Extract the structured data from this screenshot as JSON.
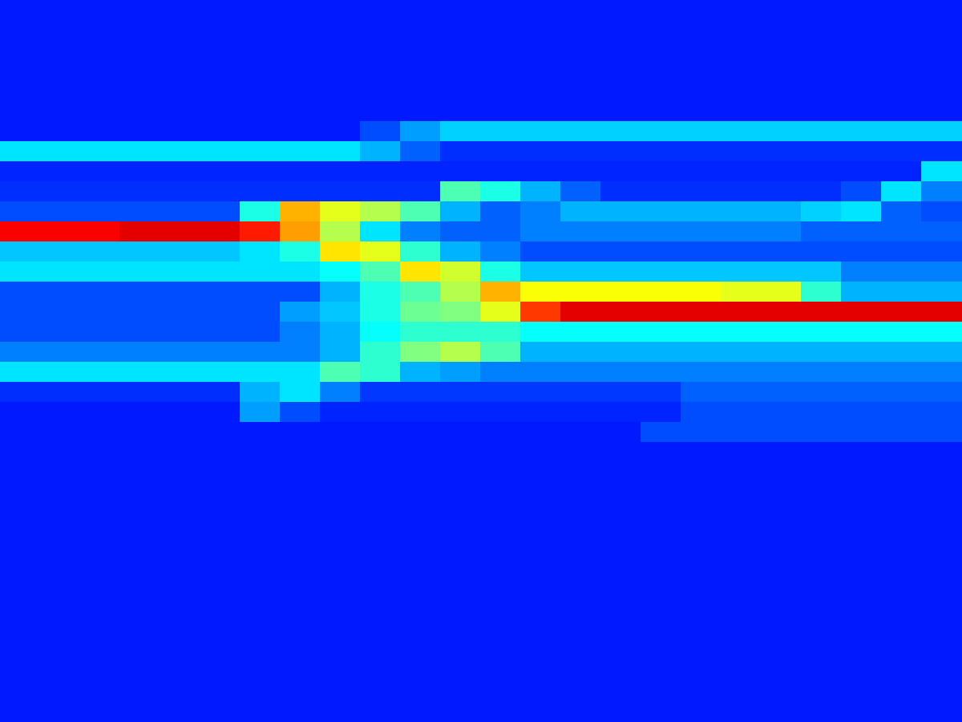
{
  "chart_data": {
    "type": "heatmap",
    "tick_labels": false,
    "grid": false,
    "zlim": [
      0,
      1
    ],
    "cells": [
      [
        0.15,
        0.15,
        0.15,
        0.15,
        0.15,
        0.15,
        0.15,
        0.15,
        0.15,
        0.15,
        0.15,
        0.15,
        0.15,
        0.15,
        0.15,
        0.15,
        0.15,
        0.15,
        0.15,
        0.15,
        0.15,
        0.15,
        0.15,
        0.15
      ],
      [
        0.15,
        0.15,
        0.15,
        0.15,
        0.15,
        0.15,
        0.15,
        0.15,
        0.15,
        0.15,
        0.15,
        0.15,
        0.15,
        0.15,
        0.15,
        0.15,
        0.15,
        0.15,
        0.15,
        0.15,
        0.15,
        0.15,
        0.15,
        0.15
      ],
      [
        0.15,
        0.15,
        0.15,
        0.15,
        0.15,
        0.15,
        0.15,
        0.15,
        0.15,
        0.15,
        0.15,
        0.15,
        0.15,
        0.15,
        0.15,
        0.15,
        0.15,
        0.15,
        0.15,
        0.15,
        0.15,
        0.15,
        0.15,
        0.15
      ],
      [
        0.15,
        0.15,
        0.15,
        0.15,
        0.15,
        0.15,
        0.15,
        0.15,
        0.15,
        0.15,
        0.15,
        0.15,
        0.15,
        0.15,
        0.15,
        0.15,
        0.15,
        0.15,
        0.15,
        0.15,
        0.15,
        0.15,
        0.15,
        0.15
      ],
      [
        0.15,
        0.15,
        0.15,
        0.15,
        0.15,
        0.15,
        0.15,
        0.15,
        0.15,
        0.15,
        0.15,
        0.15,
        0.15,
        0.15,
        0.15,
        0.15,
        0.15,
        0.15,
        0.15,
        0.15,
        0.15,
        0.15,
        0.15,
        0.15
      ],
      [
        0.15,
        0.15,
        0.15,
        0.15,
        0.15,
        0.15,
        0.15,
        0.15,
        0.15,
        0.15,
        0.15,
        0.15,
        0.15,
        0.15,
        0.15,
        0.15,
        0.15,
        0.15,
        0.15,
        0.15,
        0.15,
        0.15,
        0.15,
        0.15
      ],
      [
        0.15,
        0.15,
        0.15,
        0.15,
        0.15,
        0.15,
        0.15,
        0.15,
        0.15,
        0.2,
        0.28,
        0.33,
        0.33,
        0.33,
        0.33,
        0.33,
        0.33,
        0.33,
        0.33,
        0.33,
        0.33,
        0.33,
        0.33,
        0.33
      ],
      [
        0.35,
        0.35,
        0.35,
        0.35,
        0.35,
        0.35,
        0.35,
        0.35,
        0.35,
        0.3,
        0.22,
        0.17,
        0.17,
        0.17,
        0.17,
        0.17,
        0.17,
        0.17,
        0.17,
        0.17,
        0.17,
        0.17,
        0.17,
        0.17
      ],
      [
        0.16,
        0.16,
        0.16,
        0.16,
        0.16,
        0.16,
        0.16,
        0.16,
        0.16,
        0.16,
        0.16,
        0.16,
        0.16,
        0.16,
        0.16,
        0.16,
        0.16,
        0.16,
        0.16,
        0.16,
        0.16,
        0.16,
        0.16,
        0.35
      ],
      [
        0.17,
        0.17,
        0.17,
        0.17,
        0.17,
        0.17,
        0.17,
        0.17,
        0.17,
        0.17,
        0.17,
        0.45,
        0.4,
        0.3,
        0.22,
        0.17,
        0.17,
        0.17,
        0.17,
        0.17,
        0.17,
        0.2,
        0.35,
        0.25
      ],
      [
        0.2,
        0.2,
        0.2,
        0.2,
        0.2,
        0.2,
        0.4,
        0.7,
        0.6,
        0.55,
        0.45,
        0.3,
        0.22,
        0.25,
        0.3,
        0.3,
        0.3,
        0.3,
        0.3,
        0.3,
        0.33,
        0.35,
        0.22,
        0.2
      ],
      [
        0.88,
        0.88,
        0.88,
        0.9,
        0.9,
        0.9,
        0.85,
        0.72,
        0.55,
        0.35,
        0.25,
        0.22,
        0.22,
        0.25,
        0.25,
        0.25,
        0.25,
        0.25,
        0.25,
        0.25,
        0.22,
        0.22,
        0.22,
        0.22
      ],
      [
        0.32,
        0.32,
        0.32,
        0.32,
        0.32,
        0.32,
        0.35,
        0.4,
        0.65,
        0.6,
        0.42,
        0.3,
        0.25,
        0.2,
        0.2,
        0.2,
        0.2,
        0.2,
        0.2,
        0.2,
        0.2,
        0.2,
        0.2,
        0.2
      ],
      [
        0.35,
        0.35,
        0.35,
        0.35,
        0.35,
        0.35,
        0.35,
        0.35,
        0.38,
        0.45,
        0.65,
        0.58,
        0.4,
        0.32,
        0.32,
        0.32,
        0.32,
        0.32,
        0.32,
        0.32,
        0.32,
        0.25,
        0.25,
        0.25
      ],
      [
        0.2,
        0.2,
        0.2,
        0.2,
        0.2,
        0.2,
        0.2,
        0.2,
        0.3,
        0.4,
        0.45,
        0.55,
        0.7,
        0.62,
        0.62,
        0.62,
        0.62,
        0.62,
        0.6,
        0.6,
        0.42,
        0.3,
        0.3,
        0.3
      ],
      [
        0.2,
        0.2,
        0.2,
        0.2,
        0.2,
        0.2,
        0.2,
        0.28,
        0.32,
        0.4,
        0.48,
        0.5,
        0.6,
        0.82,
        0.9,
        0.9,
        0.9,
        0.9,
        0.9,
        0.9,
        0.9,
        0.9,
        0.9,
        0.9
      ],
      [
        0.2,
        0.2,
        0.2,
        0.2,
        0.2,
        0.2,
        0.2,
        0.25,
        0.3,
        0.38,
        0.42,
        0.42,
        0.42,
        0.38,
        0.38,
        0.38,
        0.38,
        0.38,
        0.38,
        0.38,
        0.38,
        0.38,
        0.38,
        0.38
      ],
      [
        0.25,
        0.25,
        0.25,
        0.25,
        0.25,
        0.25,
        0.25,
        0.25,
        0.3,
        0.42,
        0.5,
        0.55,
        0.45,
        0.3,
        0.3,
        0.3,
        0.3,
        0.3,
        0.3,
        0.3,
        0.3,
        0.3,
        0.3,
        0.3
      ],
      [
        0.35,
        0.35,
        0.35,
        0.35,
        0.35,
        0.35,
        0.35,
        0.35,
        0.45,
        0.42,
        0.3,
        0.28,
        0.25,
        0.25,
        0.25,
        0.25,
        0.25,
        0.25,
        0.25,
        0.25,
        0.25,
        0.25,
        0.25,
        0.25
      ],
      [
        0.17,
        0.17,
        0.17,
        0.17,
        0.17,
        0.17,
        0.3,
        0.35,
        0.25,
        0.18,
        0.18,
        0.18,
        0.18,
        0.18,
        0.18,
        0.18,
        0.18,
        0.22,
        0.22,
        0.22,
        0.22,
        0.22,
        0.22,
        0.22
      ],
      [
        0.15,
        0.15,
        0.15,
        0.15,
        0.15,
        0.15,
        0.28,
        0.2,
        0.16,
        0.16,
        0.16,
        0.16,
        0.16,
        0.16,
        0.16,
        0.16,
        0.16,
        0.2,
        0.2,
        0.2,
        0.2,
        0.2,
        0.2,
        0.2
      ],
      [
        0.15,
        0.15,
        0.15,
        0.15,
        0.15,
        0.15,
        0.15,
        0.15,
        0.15,
        0.15,
        0.15,
        0.15,
        0.15,
        0.15,
        0.15,
        0.15,
        0.2,
        0.2,
        0.2,
        0.2,
        0.2,
        0.2,
        0.2,
        0.2
      ],
      [
        0.15,
        0.15,
        0.15,
        0.15,
        0.15,
        0.15,
        0.15,
        0.15,
        0.15,
        0.15,
        0.15,
        0.15,
        0.15,
        0.15,
        0.15,
        0.15,
        0.15,
        0.15,
        0.15,
        0.15,
        0.15,
        0.15,
        0.15,
        0.15
      ],
      [
        0.15,
        0.15,
        0.15,
        0.15,
        0.15,
        0.15,
        0.15,
        0.15,
        0.15,
        0.15,
        0.15,
        0.15,
        0.15,
        0.15,
        0.15,
        0.15,
        0.15,
        0.15,
        0.15,
        0.15,
        0.15,
        0.15,
        0.15,
        0.15
      ],
      [
        0.15,
        0.15,
        0.15,
        0.15,
        0.15,
        0.15,
        0.15,
        0.15,
        0.15,
        0.15,
        0.15,
        0.15,
        0.15,
        0.15,
        0.15,
        0.15,
        0.15,
        0.15,
        0.15,
        0.15,
        0.15,
        0.15,
        0.15,
        0.15
      ],
      [
        0.15,
        0.15,
        0.15,
        0.15,
        0.15,
        0.15,
        0.15,
        0.15,
        0.15,
        0.15,
        0.15,
        0.15,
        0.15,
        0.15,
        0.15,
        0.15,
        0.15,
        0.15,
        0.15,
        0.15,
        0.15,
        0.15,
        0.15,
        0.15
      ],
      [
        0.15,
        0.15,
        0.15,
        0.15,
        0.15,
        0.15,
        0.15,
        0.15,
        0.15,
        0.15,
        0.15,
        0.15,
        0.15,
        0.15,
        0.15,
        0.15,
        0.15,
        0.15,
        0.15,
        0.15,
        0.15,
        0.15,
        0.15,
        0.15
      ],
      [
        0.15,
        0.15,
        0.15,
        0.15,
        0.15,
        0.15,
        0.15,
        0.15,
        0.15,
        0.15,
        0.15,
        0.15,
        0.15,
        0.15,
        0.15,
        0.15,
        0.15,
        0.15,
        0.15,
        0.15,
        0.15,
        0.15,
        0.15,
        0.15
      ],
      [
        0.15,
        0.15,
        0.15,
        0.15,
        0.15,
        0.15,
        0.15,
        0.15,
        0.15,
        0.15,
        0.15,
        0.15,
        0.15,
        0.15,
        0.15,
        0.15,
        0.15,
        0.15,
        0.15,
        0.15,
        0.15,
        0.15,
        0.15,
        0.15
      ],
      [
        0.15,
        0.15,
        0.15,
        0.15,
        0.15,
        0.15,
        0.15,
        0.15,
        0.15,
        0.15,
        0.15,
        0.15,
        0.15,
        0.15,
        0.15,
        0.15,
        0.15,
        0.15,
        0.15,
        0.15,
        0.15,
        0.15,
        0.15,
        0.15
      ],
      [
        0.15,
        0.15,
        0.15,
        0.15,
        0.15,
        0.15,
        0.15,
        0.15,
        0.15,
        0.15,
        0.15,
        0.15,
        0.15,
        0.15,
        0.15,
        0.15,
        0.15,
        0.15,
        0.15,
        0.15,
        0.15,
        0.15,
        0.15,
        0.15
      ],
      [
        0.15,
        0.15,
        0.15,
        0.15,
        0.15,
        0.15,
        0.15,
        0.15,
        0.15,
        0.15,
        0.15,
        0.15,
        0.15,
        0.15,
        0.15,
        0.15,
        0.15,
        0.15,
        0.15,
        0.15,
        0.15,
        0.15,
        0.15,
        0.15
      ],
      [
        0.15,
        0.15,
        0.15,
        0.15,
        0.15,
        0.15,
        0.15,
        0.15,
        0.15,
        0.15,
        0.15,
        0.15,
        0.15,
        0.15,
        0.15,
        0.15,
        0.15,
        0.15,
        0.15,
        0.15,
        0.15,
        0.15,
        0.15,
        0.15
      ],
      [
        0.15,
        0.15,
        0.15,
        0.15,
        0.15,
        0.15,
        0.15,
        0.15,
        0.15,
        0.15,
        0.15,
        0.15,
        0.15,
        0.15,
        0.15,
        0.15,
        0.15,
        0.15,
        0.15,
        0.15,
        0.15,
        0.15,
        0.15,
        0.15
      ],
      [
        0.15,
        0.15,
        0.15,
        0.15,
        0.15,
        0.15,
        0.15,
        0.15,
        0.15,
        0.15,
        0.15,
        0.15,
        0.15,
        0.15,
        0.15,
        0.15,
        0.15,
        0.15,
        0.15,
        0.15,
        0.15,
        0.15,
        0.15,
        0.15
      ],
      [
        0.15,
        0.15,
        0.15,
        0.15,
        0.15,
        0.15,
        0.15,
        0.15,
        0.15,
        0.15,
        0.15,
        0.15,
        0.15,
        0.15,
        0.15,
        0.15,
        0.15,
        0.15,
        0.15,
        0.15,
        0.15,
        0.15,
        0.15,
        0.15
      ]
    ]
  }
}
